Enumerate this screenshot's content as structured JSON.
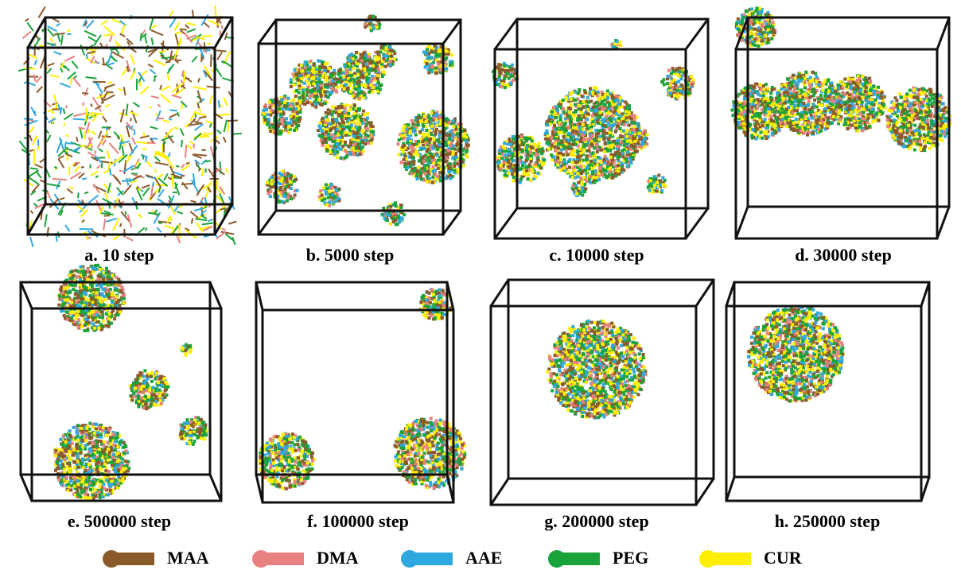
{
  "panels": [
    {
      "label": "a. 10 step"
    },
    {
      "label": "b. 5000 step"
    },
    {
      "label": "c. 10000 step"
    },
    {
      "label": "d. 30000 step"
    },
    {
      "label": "e. 500000 step"
    },
    {
      "label": "f. 100000 step"
    },
    {
      "label": "g. 200000 step"
    },
    {
      "label": "h. 250000 step"
    }
  ],
  "legend": [
    {
      "name": "MAA",
      "color": "#8b5a2b"
    },
    {
      "name": "DMA",
      "color": "#e8807f"
    },
    {
      "name": "AAE",
      "color": "#2fa8e0"
    },
    {
      "name": "PEG",
      "color": "#1aa33a"
    },
    {
      "name": "CUR",
      "color": "#ffee00"
    }
  ]
}
